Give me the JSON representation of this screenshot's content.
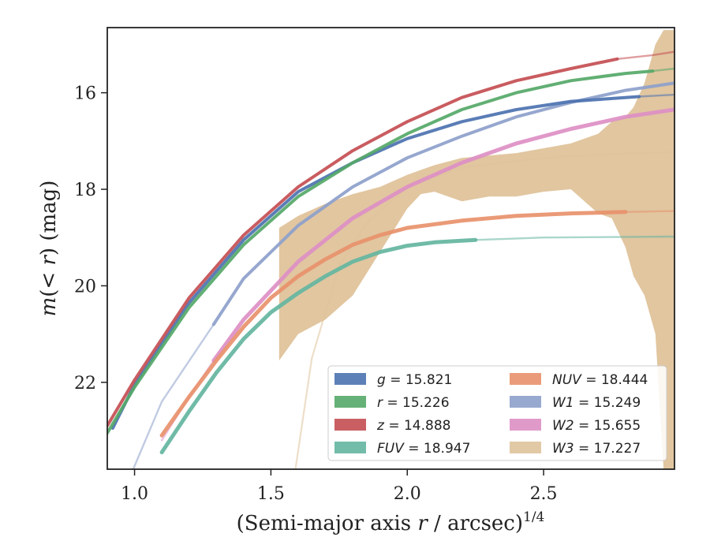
{
  "chart_data": {
    "type": "line",
    "xlabel_main": "(Semi-major axis ",
    "xlabel_r": "r",
    "xlabel_unit": " / arcsec)",
    "xlabel_exp": "1/4",
    "ylabel_m": "m",
    "ylabel_open": "(",
    "ylabel_lt": "< ",
    "ylabel_r": "r",
    "ylabel_close": ") (mag)",
    "xlim": [
      0.9,
      2.98
    ],
    "ylim": [
      23.8,
      14.65
    ],
    "y_inverted": true,
    "grid": false,
    "legend_position": "lower-right",
    "x_ticks": [
      {
        "value": 1.0,
        "label": "1.0"
      },
      {
        "value": 1.5,
        "label": "1.5"
      },
      {
        "value": 2.0,
        "label": "2.0"
      },
      {
        "value": 2.5,
        "label": "2.5"
      }
    ],
    "y_ticks": [
      {
        "value": 16,
        "label": "16"
      },
      {
        "value": 18,
        "label": "18"
      },
      {
        "value": 20,
        "label": "20"
      },
      {
        "value": 22,
        "label": "22"
      }
    ],
    "series": [
      {
        "id": "g",
        "band": "g",
        "value_text": "15.821",
        "color": "#4c72b0",
        "data_x": [
          0.92,
          1.0,
          1.2,
          1.4,
          1.6,
          1.8,
          2.0,
          2.2,
          2.4,
          2.6,
          2.85
        ],
        "data_y": [
          22.95,
          22.05,
          20.35,
          19.05,
          18.05,
          17.45,
          16.95,
          16.6,
          16.35,
          16.18,
          16.08
        ],
        "model_x": [
          2.85,
          2.98
        ],
        "model_y": [
          16.08,
          16.04
        ]
      },
      {
        "id": "r",
        "band": "r",
        "value_text": "15.226",
        "color": "#55a868",
        "data_x": [
          0.9,
          1.0,
          1.2,
          1.4,
          1.6,
          1.8,
          2.0,
          2.2,
          2.4,
          2.6,
          2.8,
          2.9
        ],
        "data_y": [
          23.05,
          22.1,
          20.45,
          19.15,
          18.15,
          17.45,
          16.85,
          16.35,
          16.0,
          15.75,
          15.6,
          15.55
        ],
        "model_x": [
          2.9,
          2.98
        ],
        "model_y": [
          15.55,
          15.5
        ]
      },
      {
        "id": "z",
        "band": "z",
        "value_text": "14.888",
        "color": "#c44e52",
        "data_x": [
          0.9,
          1.0,
          1.2,
          1.4,
          1.6,
          1.8,
          2.0,
          2.2,
          2.4,
          2.6,
          2.77
        ],
        "data_y": [
          22.9,
          21.95,
          20.25,
          18.95,
          17.95,
          17.2,
          16.6,
          16.1,
          15.75,
          15.5,
          15.3
        ],
        "model_x": [
          2.77,
          2.9,
          2.98
        ],
        "model_y": [
          15.3,
          15.22,
          15.15
        ]
      },
      {
        "id": "fuv",
        "band": "FUV",
        "value_text": "18.947",
        "color": "#64b5a0",
        "data_x": [
          1.1,
          1.2,
          1.3,
          1.4,
          1.5,
          1.6,
          1.7,
          1.8,
          1.9,
          2.0,
          2.1,
          2.25
        ],
        "data_y": [
          23.45,
          22.6,
          21.8,
          21.1,
          20.55,
          20.15,
          19.8,
          19.5,
          19.3,
          19.17,
          19.1,
          19.05
        ],
        "model_x": [
          2.25,
          2.5,
          2.98
        ],
        "model_y": [
          19.05,
          19.0,
          18.98
        ]
      },
      {
        "id": "nuv",
        "band": "NUV",
        "value_text": "18.444",
        "color": "#e8916b",
        "data_x": [
          1.1,
          1.2,
          1.3,
          1.4,
          1.5,
          1.6,
          1.7,
          1.8,
          1.9,
          2.0,
          2.2,
          2.4,
          2.6,
          2.8
        ],
        "data_y": [
          23.1,
          22.3,
          21.55,
          20.85,
          20.25,
          19.8,
          19.45,
          19.15,
          18.95,
          18.8,
          18.65,
          18.55,
          18.5,
          18.47
        ],
        "model_x": [
          2.8,
          2.98
        ],
        "model_y": [
          18.47,
          18.45
        ]
      },
      {
        "id": "w1",
        "band": "W1",
        "value_text": "15.249",
        "color": "#8da0cb",
        "data_x": [
          1.29,
          1.4,
          1.6,
          1.8,
          2.0,
          2.2,
          2.4,
          2.6,
          2.8,
          2.98
        ],
        "data_y": [
          20.8,
          19.85,
          18.75,
          17.95,
          17.35,
          16.9,
          16.5,
          16.2,
          15.95,
          15.8
        ],
        "model_x": [
          0.98,
          1.1,
          1.29
        ],
        "model_y": [
          24.0,
          22.4,
          20.8
        ]
      },
      {
        "id": "w2",
        "band": "W2",
        "value_text": "15.655",
        "color": "#dd8fc4",
        "data_x": [
          1.29,
          1.4,
          1.6,
          1.8,
          2.0,
          2.2,
          2.4,
          2.6,
          2.8,
          2.98
        ],
        "data_y": [
          21.55,
          20.7,
          19.5,
          18.6,
          17.95,
          17.45,
          17.05,
          16.75,
          16.5,
          16.35
        ],
        "model_x": [
          1.1,
          1.2,
          1.29
        ],
        "model_y": [
          23.2,
          22.3,
          21.55
        ]
      },
      {
        "id": "w3",
        "band": "W3",
        "value_text": "17.227",
        "color": "#dfc39b",
        "band_x": [
          1.53,
          1.6,
          1.7,
          1.8,
          1.9,
          2.0,
          2.05,
          2.1,
          2.2,
          2.3,
          2.4,
          2.5,
          2.6,
          2.7,
          2.75,
          2.8,
          2.83,
          2.87,
          2.91,
          2.94,
          2.98
        ],
        "band_lo": [
          18.8,
          18.55,
          18.3,
          18.1,
          17.95,
          17.7,
          17.6,
          17.5,
          17.35,
          17.3,
          17.25,
          17.15,
          17.05,
          16.85,
          16.6,
          16.5,
          16.3,
          15.8,
          15.0,
          14.7,
          14.7
        ],
        "band_hi": [
          21.55,
          21.0,
          20.7,
          20.2,
          19.3,
          18.4,
          18.1,
          18.05,
          18.25,
          18.15,
          18.15,
          18.05,
          18.0,
          18.5,
          18.6,
          19.2,
          19.8,
          20.2,
          21.0,
          23.8,
          23.8
        ],
        "model_x": [
          1.59,
          1.65,
          1.75,
          1.85,
          2.0,
          2.2,
          2.5,
          2.75,
          2.98
        ],
        "model_y": [
          23.8,
          21.5,
          19.6,
          18.7,
          17.95,
          17.55,
          17.35,
          17.27,
          17.23
        ]
      }
    ],
    "legend": [
      {
        "id": "g",
        "text": "= 15.821"
      },
      {
        "id": "r",
        "text": "= 15.226"
      },
      {
        "id": "z",
        "text": "= 14.888"
      },
      {
        "id": "fuv",
        "text": "= 18.947"
      },
      {
        "id": "nuv",
        "text": "= 18.444"
      },
      {
        "id": "w1",
        "text": "= 15.249"
      },
      {
        "id": "w2",
        "text": "= 15.655"
      },
      {
        "id": "w3",
        "text": "= 17.227"
      }
    ]
  }
}
